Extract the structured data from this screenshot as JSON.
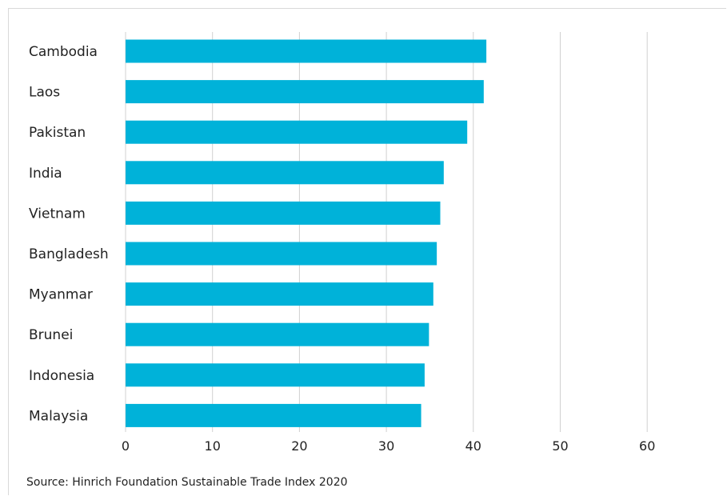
{
  "chart_data": {
    "type": "bar",
    "orientation": "horizontal",
    "categories": [
      "Cambodia",
      "Laos",
      "Pakistan",
      "India",
      "Vietnam",
      "Bangladesh",
      "Myanmar",
      "Brunei",
      "Indonesia",
      "Malaysia"
    ],
    "values": [
      41.5,
      41.2,
      39.3,
      36.6,
      36.2,
      35.8,
      35.4,
      34.9,
      34.4,
      34.0
    ],
    "xlim": [
      0,
      60
    ],
    "xticks": [
      "0",
      "10",
      "20",
      "30",
      "40",
      "50",
      "60"
    ],
    "grid": true,
    "bar_color": "#00b2d9",
    "grid_color": "#d0d0d0"
  },
  "source": "Source: Hinrich Foundation Sustainable Trade Index 2020"
}
